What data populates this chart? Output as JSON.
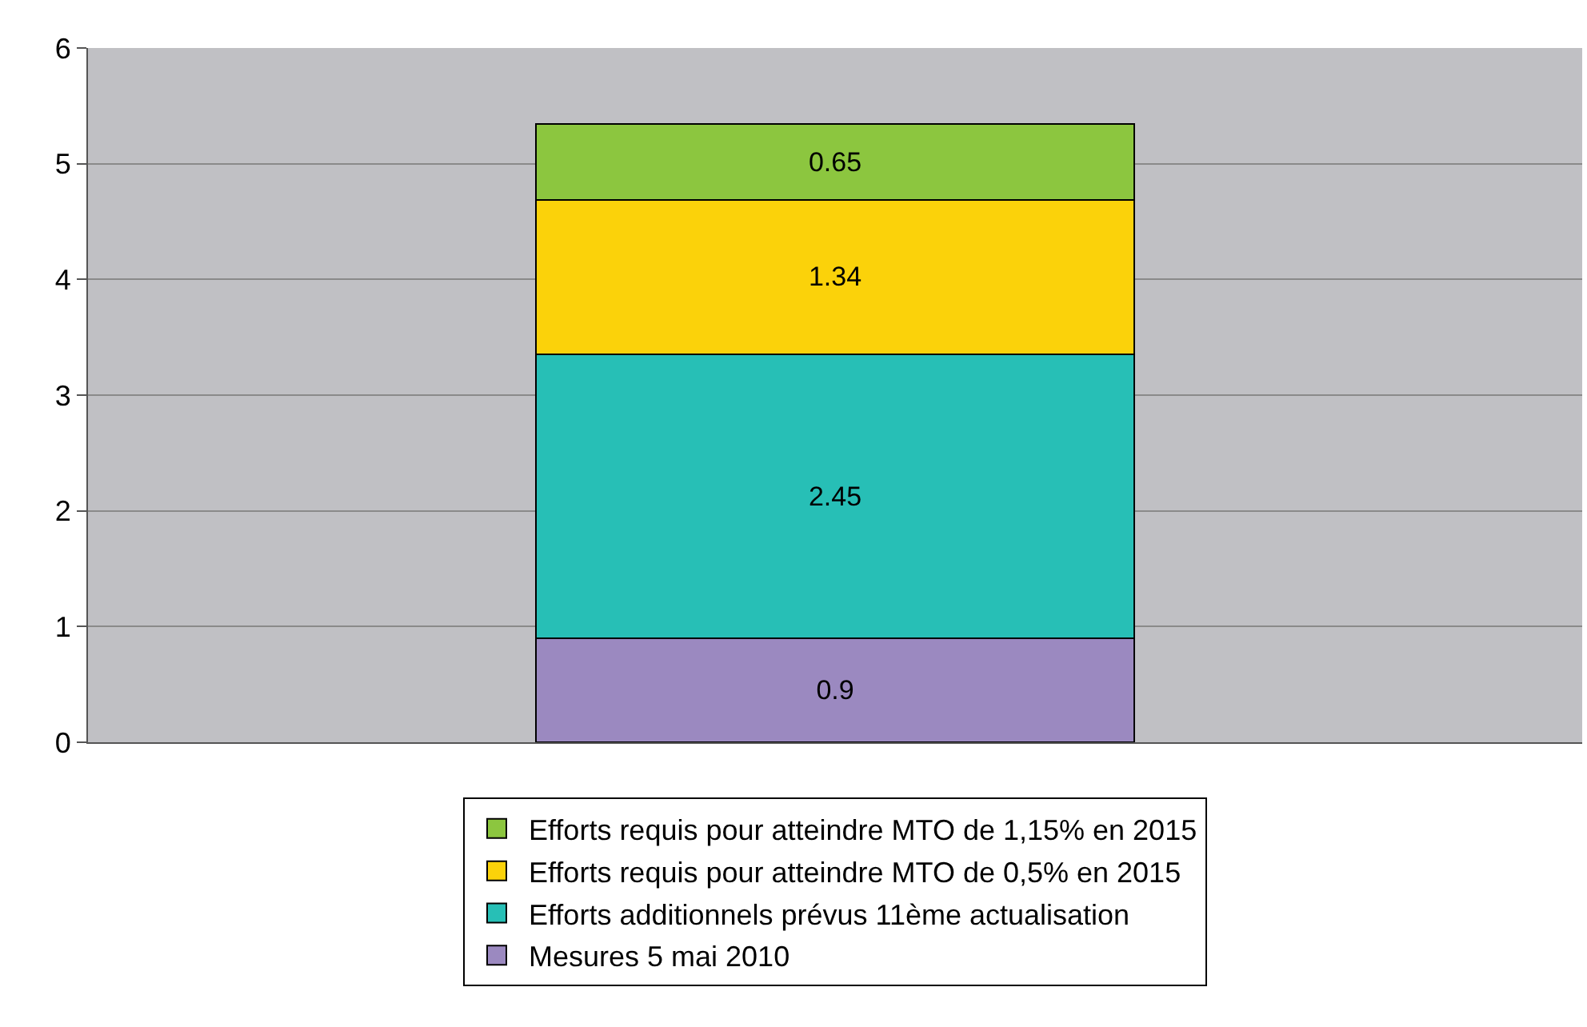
{
  "chart_data": {
    "type": "bar",
    "stacked": true,
    "categories": [
      null
    ],
    "series": [
      {
        "name": "Mesures 5 mai 2010",
        "color": "#9b89c0",
        "values": [
          0.9
        ]
      },
      {
        "name": "Efforts additionnels prévus 11ème actualisation",
        "color": "#27bfb6",
        "values": [
          2.45
        ]
      },
      {
        "name": "Efforts requis pour atteindre MTO de 0,5% en 2015",
        "color": "#fbd20a",
        "values": [
          1.34
        ]
      },
      {
        "name": "Efforts requis pour atteindre MTO de 1,15% en 2015",
        "color": "#8cc63f",
        "values": [
          0.65
        ]
      }
    ],
    "ylim": [
      0,
      6
    ],
    "yticks": [
      0,
      1,
      2,
      3,
      4,
      5,
      6
    ],
    "grid": "y",
    "legend": "bottom",
    "data_labels": true
  }
}
